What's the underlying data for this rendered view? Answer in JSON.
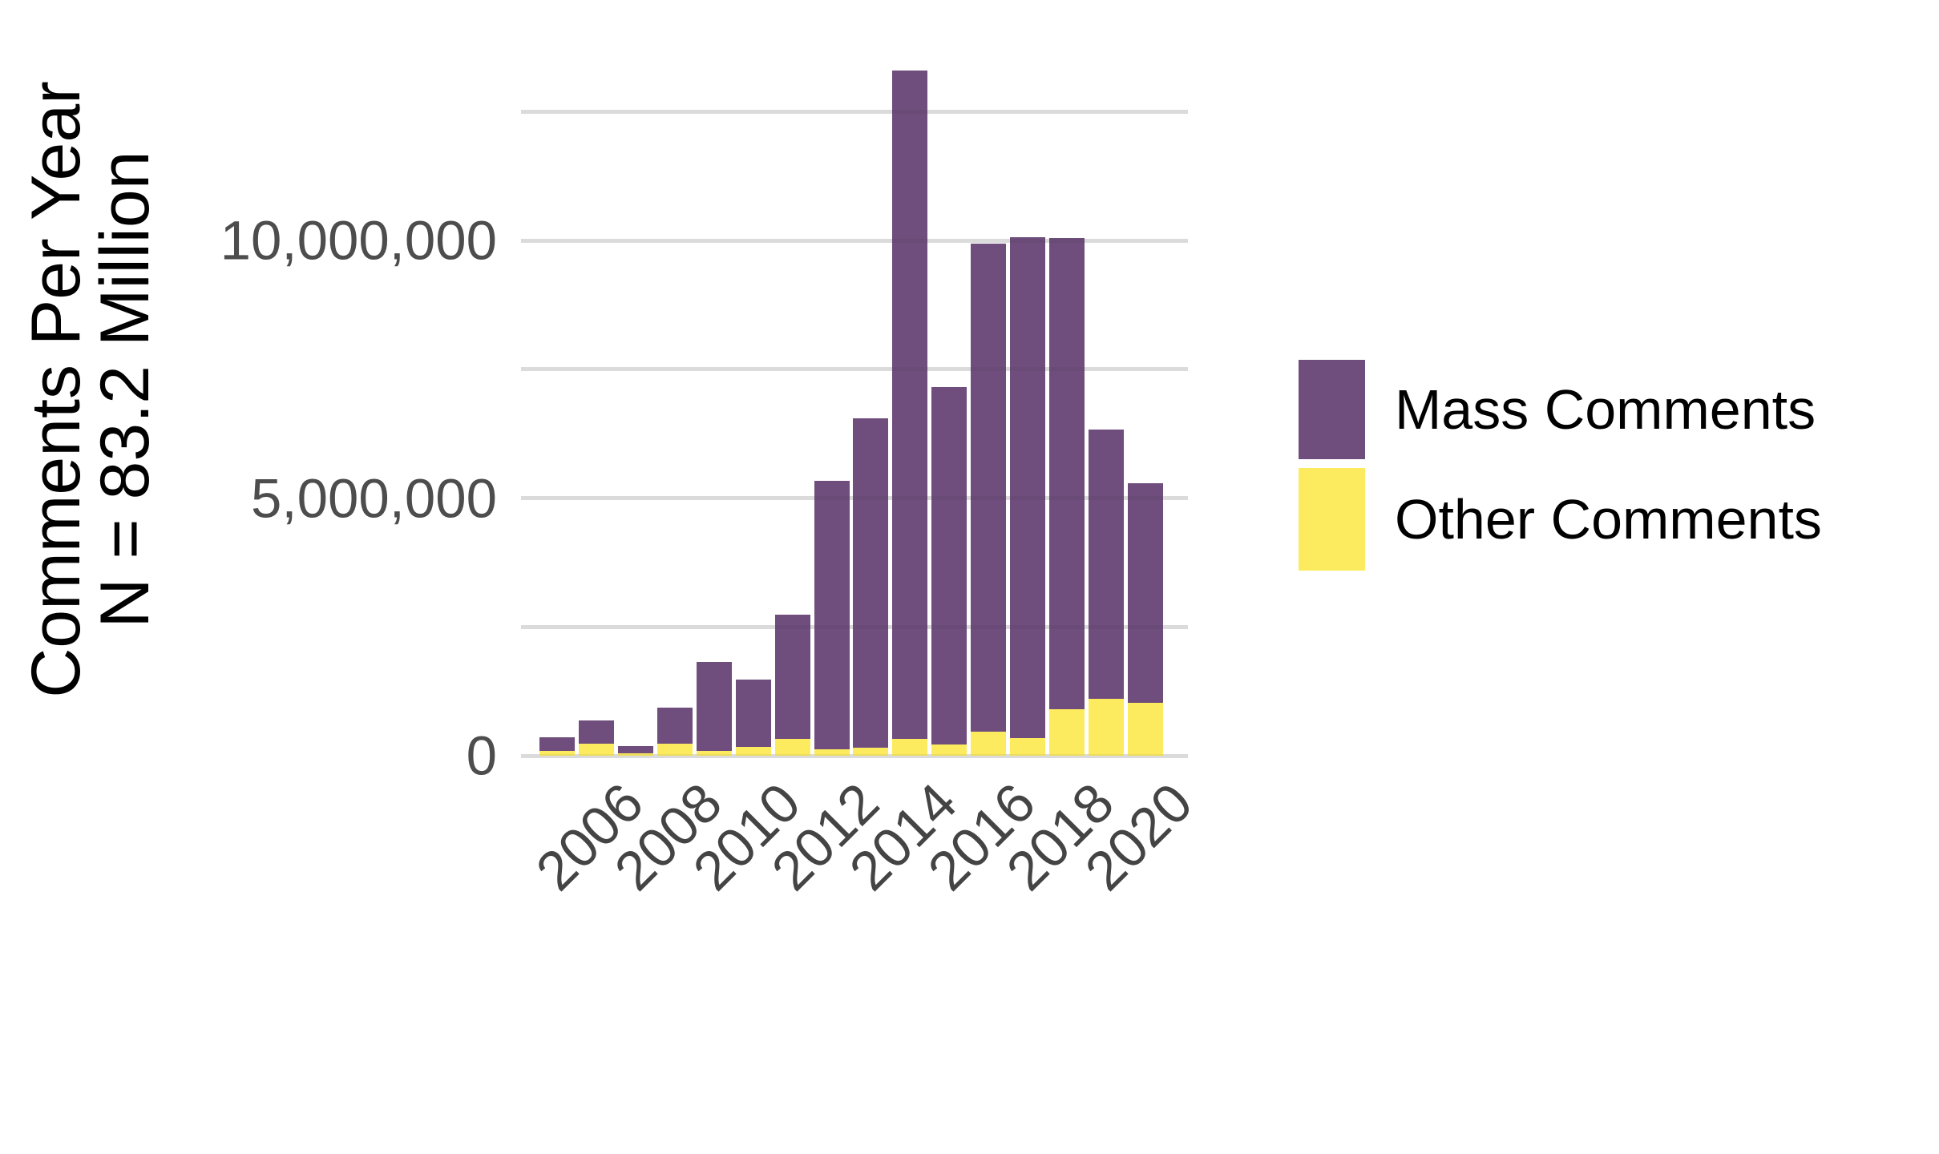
{
  "y_axis": {
    "title_line1": "Comments Per Year",
    "title_line2": "N = 83.2 Million",
    "tick_labels": [
      "0",
      "5,000,000",
      "10,000,000"
    ],
    "tick_values": [
      0,
      5000000,
      10000000
    ]
  },
  "x_axis": {
    "tick_labels": [
      "2006",
      "2008",
      "2010",
      "2012",
      "2014",
      "2016",
      "2018",
      "2020"
    ],
    "tick_years": [
      2006,
      2008,
      2010,
      2012,
      2014,
      2016,
      2018,
      2020
    ]
  },
  "legend": {
    "items": [
      {
        "label": "Mass Comments",
        "color": "#644072"
      },
      {
        "label": "Other Comments",
        "color": "#fce953"
      }
    ]
  },
  "colors": {
    "mass_fill": "#644072",
    "other_fill": "#fce953",
    "gridline": "#e8e8e8",
    "tick_text": "#4d4d4d",
    "title_text": "#000000",
    "background": "#ffffff"
  },
  "chart_data": {
    "type": "bar",
    "stacked": true,
    "title": "",
    "xlabel": "",
    "ylabel": "Comments Per Year N = 83.2 Million",
    "categories": [
      2005,
      2006,
      2007,
      2008,
      2009,
      2010,
      2011,
      2012,
      2013,
      2014,
      2015,
      2016,
      2017,
      2018,
      2019,
      2020
    ],
    "series": [
      {
        "name": "Mass Comments",
        "values": [
          270000,
          450000,
          130000,
          710000,
          1730000,
          1300000,
          2410000,
          5220000,
          6390000,
          12980000,
          6950000,
          9480000,
          9720000,
          9140000,
          5230000,
          4260000
        ]
      },
      {
        "name": "Other Comments",
        "values": [
          90000,
          230000,
          50000,
          230000,
          90000,
          170000,
          330000,
          120000,
          150000,
          320000,
          210000,
          460000,
          340000,
          900000,
          1100000,
          1030000
        ]
      }
    ],
    "totals_note": "values estimated from bar pixel heights; printed total N = 83.2 Million",
    "ylim": [
      0,
      13500000
    ],
    "gridline_step": 2500000,
    "grid": true,
    "legend_position": "right"
  }
}
